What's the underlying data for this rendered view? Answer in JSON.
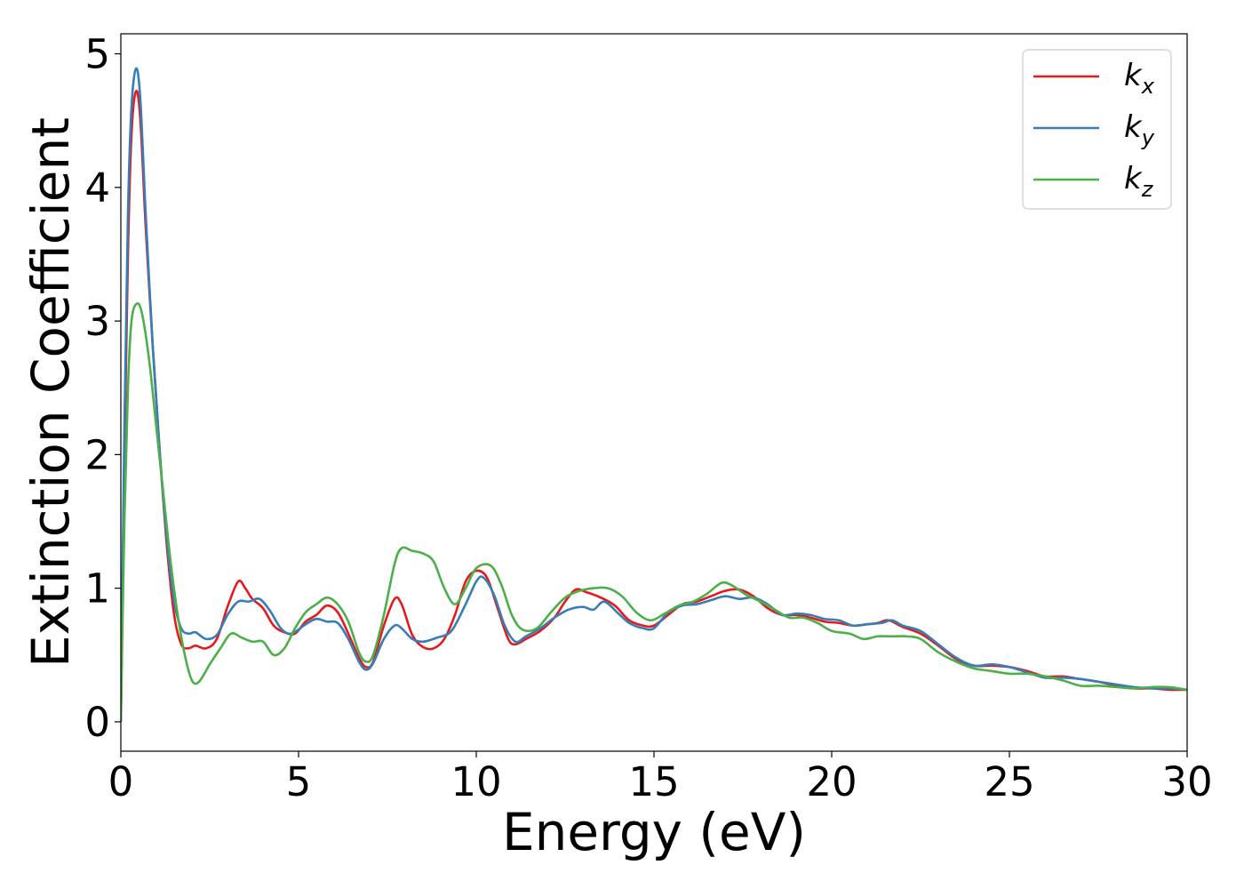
{
  "chart_data": {
    "type": "line",
    "xlabel": "Energy (eV)",
    "ylabel": "Extinction Coefficient",
    "xlim": [
      0,
      30
    ],
    "ylim": [
      -0.22,
      5.15
    ],
    "xticks": [
      "0",
      "5",
      "10",
      "15",
      "20",
      "25",
      "30"
    ],
    "yticks": [
      "0",
      "1",
      "2",
      "3",
      "4",
      "5"
    ],
    "grid": false,
    "legend_position": "top-right",
    "series": [
      {
        "name": "k",
        "subscript": "x",
        "color": "#e41a1c",
        "points": [
          [
            0,
            0
          ],
          [
            0.1,
            2.0
          ],
          [
            0.2,
            3.5
          ],
          [
            0.3,
            4.4
          ],
          [
            0.43,
            4.72
          ],
          [
            0.55,
            4.5
          ],
          [
            0.7,
            3.7
          ],
          [
            0.9,
            2.8
          ],
          [
            1.1,
            2.0
          ],
          [
            1.3,
            1.3
          ],
          [
            1.5,
            0.8
          ],
          [
            1.7,
            0.58
          ],
          [
            1.9,
            0.55
          ],
          [
            2.1,
            0.57
          ],
          [
            2.4,
            0.55
          ],
          [
            2.7,
            0.62
          ],
          [
            3.0,
            0.86
          ],
          [
            3.3,
            1.05
          ],
          [
            3.5,
            1.0
          ],
          [
            3.7,
            0.92
          ],
          [
            4.0,
            0.85
          ],
          [
            4.3,
            0.72
          ],
          [
            4.6,
            0.67
          ],
          [
            4.9,
            0.66
          ],
          [
            5.2,
            0.75
          ],
          [
            5.5,
            0.8
          ],
          [
            5.8,
            0.87
          ],
          [
            6.1,
            0.82
          ],
          [
            6.4,
            0.66
          ],
          [
            6.7,
            0.48
          ],
          [
            6.9,
            0.41
          ],
          [
            7.1,
            0.45
          ],
          [
            7.4,
            0.72
          ],
          [
            7.7,
            0.92
          ],
          [
            7.9,
            0.88
          ],
          [
            8.2,
            0.65
          ],
          [
            8.5,
            0.56
          ],
          [
            8.8,
            0.55
          ],
          [
            9.1,
            0.62
          ],
          [
            9.4,
            0.8
          ],
          [
            9.7,
            1.05
          ],
          [
            10.0,
            1.13
          ],
          [
            10.3,
            1.08
          ],
          [
            10.6,
            0.85
          ],
          [
            10.9,
            0.62
          ],
          [
            11.1,
            0.58
          ],
          [
            11.4,
            0.62
          ],
          [
            11.8,
            0.68
          ],
          [
            12.2,
            0.78
          ],
          [
            12.5,
            0.9
          ],
          [
            12.8,
            0.99
          ],
          [
            13.1,
            0.97
          ],
          [
            13.5,
            0.93
          ],
          [
            13.9,
            0.87
          ],
          [
            14.3,
            0.76
          ],
          [
            14.7,
            0.72
          ],
          [
            15.0,
            0.72
          ],
          [
            15.4,
            0.8
          ],
          [
            15.8,
            0.88
          ],
          [
            16.2,
            0.9
          ],
          [
            16.6,
            0.94
          ],
          [
            17.0,
            0.98
          ],
          [
            17.4,
            0.99
          ],
          [
            17.8,
            0.94
          ],
          [
            18.2,
            0.85
          ],
          [
            18.6,
            0.8
          ],
          [
            19.0,
            0.8
          ],
          [
            19.4,
            0.78
          ],
          [
            19.8,
            0.75
          ],
          [
            20.2,
            0.74
          ],
          [
            20.6,
            0.72
          ],
          [
            21.0,
            0.73
          ],
          [
            21.3,
            0.74
          ],
          [
            21.6,
            0.76
          ],
          [
            22.0,
            0.71
          ],
          [
            22.5,
            0.66
          ],
          [
            23.0,
            0.57
          ],
          [
            23.5,
            0.47
          ],
          [
            24.0,
            0.42
          ],
          [
            24.5,
            0.42
          ],
          [
            25.0,
            0.41
          ],
          [
            25.5,
            0.38
          ],
          [
            26.0,
            0.34
          ],
          [
            26.5,
            0.34
          ],
          [
            27.0,
            0.32
          ],
          [
            27.5,
            0.3
          ],
          [
            28.0,
            0.27
          ],
          [
            28.5,
            0.25
          ],
          [
            29.0,
            0.25
          ],
          [
            29.5,
            0.24
          ],
          [
            30.0,
            0.24
          ]
        ]
      },
      {
        "name": "k",
        "subscript": "y",
        "color": "#377eb8",
        "points": [
          [
            0,
            0
          ],
          [
            0.1,
            2.2
          ],
          [
            0.2,
            3.8
          ],
          [
            0.3,
            4.6
          ],
          [
            0.43,
            4.89
          ],
          [
            0.55,
            4.65
          ],
          [
            0.7,
            3.8
          ],
          [
            0.9,
            2.8
          ],
          [
            1.1,
            2.0
          ],
          [
            1.3,
            1.35
          ],
          [
            1.5,
            0.9
          ],
          [
            1.7,
            0.7
          ],
          [
            1.9,
            0.66
          ],
          [
            2.1,
            0.67
          ],
          [
            2.4,
            0.62
          ],
          [
            2.7,
            0.65
          ],
          [
            3.0,
            0.8
          ],
          [
            3.3,
            0.9
          ],
          [
            3.6,
            0.9
          ],
          [
            3.9,
            0.92
          ],
          [
            4.2,
            0.83
          ],
          [
            4.5,
            0.7
          ],
          [
            4.8,
            0.66
          ],
          [
            5.2,
            0.73
          ],
          [
            5.5,
            0.77
          ],
          [
            5.8,
            0.75
          ],
          [
            6.1,
            0.74
          ],
          [
            6.4,
            0.62
          ],
          [
            6.7,
            0.45
          ],
          [
            6.9,
            0.39
          ],
          [
            7.1,
            0.44
          ],
          [
            7.4,
            0.62
          ],
          [
            7.7,
            0.72
          ],
          [
            7.9,
            0.7
          ],
          [
            8.2,
            0.62
          ],
          [
            8.5,
            0.6
          ],
          [
            8.9,
            0.63
          ],
          [
            9.3,
            0.68
          ],
          [
            9.7,
            0.88
          ],
          [
            10.0,
            1.05
          ],
          [
            10.2,
            1.08
          ],
          [
            10.5,
            0.95
          ],
          [
            10.8,
            0.72
          ],
          [
            11.1,
            0.6
          ],
          [
            11.4,
            0.64
          ],
          [
            11.8,
            0.7
          ],
          [
            12.2,
            0.78
          ],
          [
            12.6,
            0.84
          ],
          [
            13.0,
            0.86
          ],
          [
            13.3,
            0.84
          ],
          [
            13.6,
            0.9
          ],
          [
            14.0,
            0.81
          ],
          [
            14.3,
            0.74
          ],
          [
            14.7,
            0.7
          ],
          [
            15.0,
            0.7
          ],
          [
            15.4,
            0.82
          ],
          [
            15.8,
            0.87
          ],
          [
            16.2,
            0.88
          ],
          [
            16.6,
            0.91
          ],
          [
            17.0,
            0.94
          ],
          [
            17.4,
            0.92
          ],
          [
            17.8,
            0.93
          ],
          [
            18.2,
            0.88
          ],
          [
            18.6,
            0.8
          ],
          [
            19.0,
            0.81
          ],
          [
            19.4,
            0.8
          ],
          [
            19.8,
            0.77
          ],
          [
            20.2,
            0.76
          ],
          [
            20.6,
            0.72
          ],
          [
            21.0,
            0.73
          ],
          [
            21.4,
            0.74
          ],
          [
            21.7,
            0.76
          ],
          [
            22.0,
            0.72
          ],
          [
            22.5,
            0.68
          ],
          [
            23.0,
            0.58
          ],
          [
            23.5,
            0.48
          ],
          [
            24.0,
            0.42
          ],
          [
            24.5,
            0.43
          ],
          [
            25.0,
            0.41
          ],
          [
            25.5,
            0.37
          ],
          [
            26.0,
            0.33
          ],
          [
            26.5,
            0.33
          ],
          [
            27.0,
            0.32
          ],
          [
            27.5,
            0.3
          ],
          [
            28.0,
            0.28
          ],
          [
            28.5,
            0.26
          ],
          [
            29.0,
            0.25
          ],
          [
            29.5,
            0.25
          ],
          [
            30.0,
            0.24
          ]
        ]
      },
      {
        "name": "k",
        "subscript": "z",
        "color": "#4daf4a",
        "points": [
          [
            0,
            0
          ],
          [
            0.1,
            1.5
          ],
          [
            0.2,
            2.5
          ],
          [
            0.3,
            3.0
          ],
          [
            0.45,
            3.13
          ],
          [
            0.6,
            3.05
          ],
          [
            0.8,
            2.7
          ],
          [
            1.0,
            2.2
          ],
          [
            1.2,
            1.7
          ],
          [
            1.4,
            1.2
          ],
          [
            1.6,
            0.8
          ],
          [
            1.8,
            0.5
          ],
          [
            2.0,
            0.31
          ],
          [
            2.2,
            0.3
          ],
          [
            2.5,
            0.43
          ],
          [
            2.8,
            0.55
          ],
          [
            3.1,
            0.66
          ],
          [
            3.4,
            0.63
          ],
          [
            3.7,
            0.6
          ],
          [
            4.0,
            0.6
          ],
          [
            4.3,
            0.5
          ],
          [
            4.6,
            0.55
          ],
          [
            4.9,
            0.7
          ],
          [
            5.2,
            0.82
          ],
          [
            5.5,
            0.88
          ],
          [
            5.8,
            0.93
          ],
          [
            6.1,
            0.88
          ],
          [
            6.4,
            0.75
          ],
          [
            6.7,
            0.52
          ],
          [
            6.9,
            0.45
          ],
          [
            7.1,
            0.5
          ],
          [
            7.4,
            0.8
          ],
          [
            7.7,
            1.18
          ],
          [
            7.9,
            1.3
          ],
          [
            8.2,
            1.28
          ],
          [
            8.5,
            1.26
          ],
          [
            8.8,
            1.2
          ],
          [
            9.1,
            1.0
          ],
          [
            9.4,
            0.88
          ],
          [
            9.7,
            1.0
          ],
          [
            10.0,
            1.15
          ],
          [
            10.4,
            1.17
          ],
          [
            10.7,
            1.03
          ],
          [
            11.0,
            0.8
          ],
          [
            11.3,
            0.69
          ],
          [
            11.7,
            0.7
          ],
          [
            12.1,
            0.82
          ],
          [
            12.5,
            0.93
          ],
          [
            12.9,
            0.98
          ],
          [
            13.3,
            1.0
          ],
          [
            13.7,
            1.0
          ],
          [
            14.1,
            0.94
          ],
          [
            14.5,
            0.82
          ],
          [
            14.9,
            0.76
          ],
          [
            15.3,
            0.81
          ],
          [
            15.7,
            0.87
          ],
          [
            16.1,
            0.9
          ],
          [
            16.5,
            0.96
          ],
          [
            16.9,
            1.04
          ],
          [
            17.2,
            1.02
          ],
          [
            17.6,
            0.95
          ],
          [
            18.0,
            0.9
          ],
          [
            18.4,
            0.84
          ],
          [
            18.8,
            0.78
          ],
          [
            19.2,
            0.78
          ],
          [
            19.6,
            0.74
          ],
          [
            20.0,
            0.68
          ],
          [
            20.5,
            0.66
          ],
          [
            20.9,
            0.62
          ],
          [
            21.3,
            0.64
          ],
          [
            21.7,
            0.64
          ],
          [
            22.1,
            0.64
          ],
          [
            22.5,
            0.62
          ],
          [
            23.0,
            0.52
          ],
          [
            23.5,
            0.45
          ],
          [
            24.0,
            0.4
          ],
          [
            24.5,
            0.38
          ],
          [
            25.0,
            0.36
          ],
          [
            25.5,
            0.36
          ],
          [
            26.0,
            0.34
          ],
          [
            26.5,
            0.31
          ],
          [
            27.0,
            0.27
          ],
          [
            27.5,
            0.27
          ],
          [
            28.0,
            0.26
          ],
          [
            28.5,
            0.25
          ],
          [
            29.0,
            0.26
          ],
          [
            29.5,
            0.26
          ],
          [
            30.0,
            0.24
          ]
        ]
      }
    ]
  }
}
